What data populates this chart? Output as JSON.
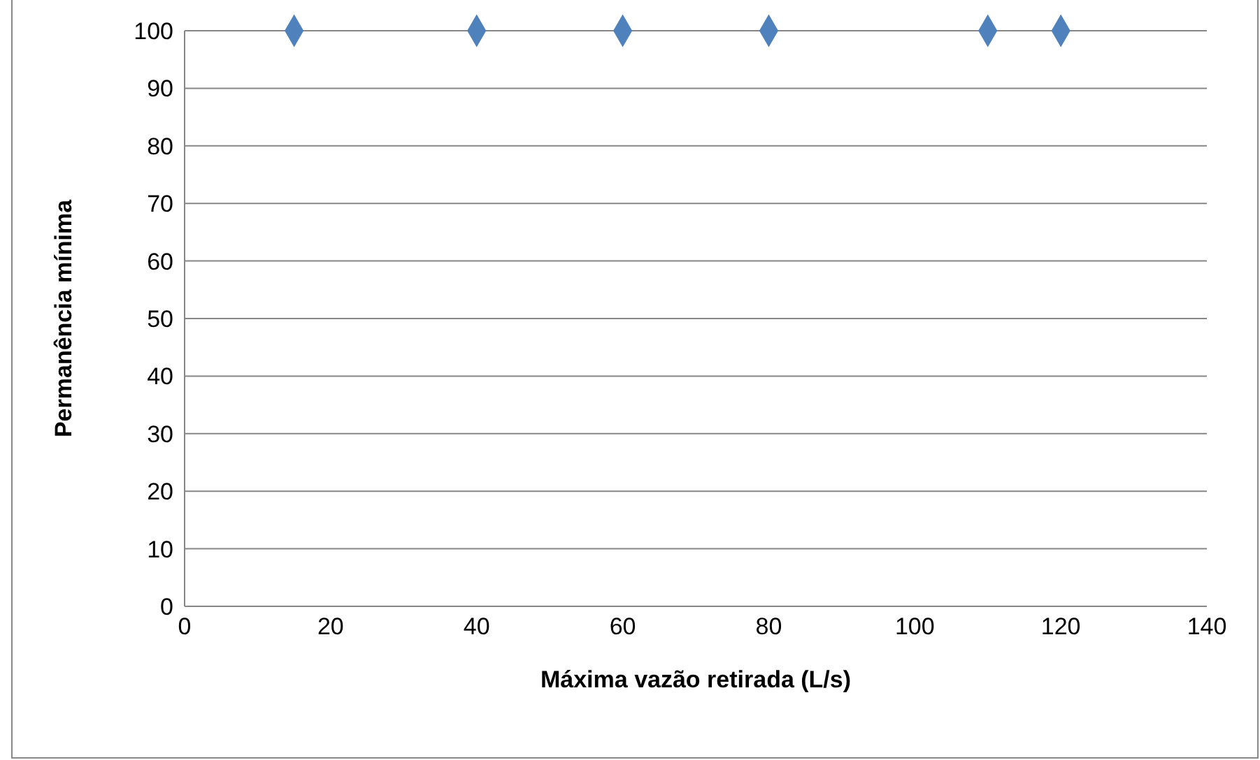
{
  "chart_data": {
    "type": "scatter",
    "xlabel": "Máxima vazão retirada (L/s)",
    "ylabel": "Permanência mínima",
    "x": [
      15,
      40,
      60,
      80,
      110,
      120
    ],
    "series": [
      {
        "color": "#4f81bd",
        "values": [
          100,
          100,
          100,
          100,
          100,
          100
        ]
      }
    ],
    "xlim": [
      0,
      140
    ],
    "xticks": [
      0,
      20,
      40,
      60,
      80,
      100,
      120,
      140
    ],
    "ylim": [
      0,
      100
    ],
    "yticks": [
      0,
      10,
      20,
      30,
      40,
      50,
      60,
      70,
      80,
      90,
      100
    ],
    "grid": "y",
    "marker": "diamond",
    "legend": false
  }
}
